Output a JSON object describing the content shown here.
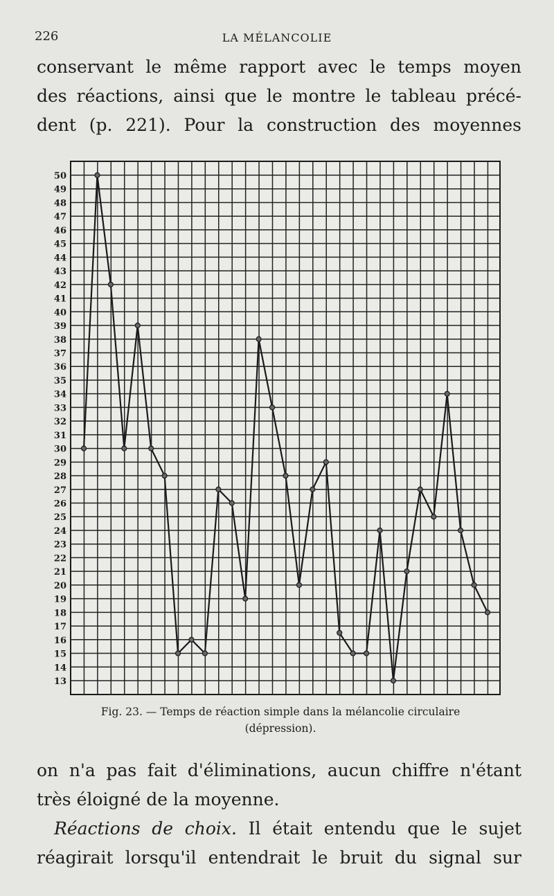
{
  "header": {
    "page_number": "226",
    "running_title": "LA MÉLANCOLIE"
  },
  "paragraph_top": [
    "conservant le même rapport avec le temps moyen",
    "des réactions, ainsi que le montre le tableau précé-",
    "dent (p. 221). Pour la construction des moyennes"
  ],
  "caption": {
    "line1": "Fig. 23. — Temps de réaction simple dans la mélancolie circulaire",
    "line2": "(dépression)."
  },
  "paragraph_bottom": {
    "lines": [
      "on n'a pas fait d'éliminations, aucun chiffre n'étant",
      "très éloigné de la moyenne."
    ],
    "italic_lead": "Réactions de choix.",
    "line3_rest": " Il était entendu que le sujet",
    "line4": "réagirait lorsqu'il entendrait le bruit du signal sur"
  },
  "chart_data": {
    "type": "line",
    "title": "",
    "xlabel": "",
    "ylabel": "",
    "ylim": [
      12,
      51
    ],
    "grid": true,
    "y_ticks": [
      "50",
      "49",
      "48",
      "47",
      "46",
      "45",
      "44",
      "43",
      "42",
      "41",
      "40",
      "39",
      "38",
      "37",
      "36",
      "35",
      "34",
      "33",
      "32",
      "31",
      "30",
      "29",
      "28",
      "27",
      "26",
      "25",
      "24",
      "23",
      "22",
      "21",
      "20",
      "19",
      "18",
      "17",
      "16",
      "15",
      "14",
      "13"
    ],
    "x": [
      1,
      2,
      3,
      4,
      5,
      6,
      7,
      8,
      9,
      10,
      11,
      12,
      13,
      14,
      15,
      16,
      17,
      18,
      19,
      20,
      21,
      22,
      23,
      24,
      25,
      26,
      27,
      28,
      29,
      30,
      31
    ],
    "values": [
      30,
      50,
      42,
      30,
      39,
      30,
      28,
      15,
      16,
      15,
      27,
      26,
      19,
      38,
      33,
      28,
      20,
      27,
      29,
      16.5,
      15,
      15,
      24,
      13,
      21,
      27,
      25,
      34,
      24,
      20,
      18
    ]
  }
}
